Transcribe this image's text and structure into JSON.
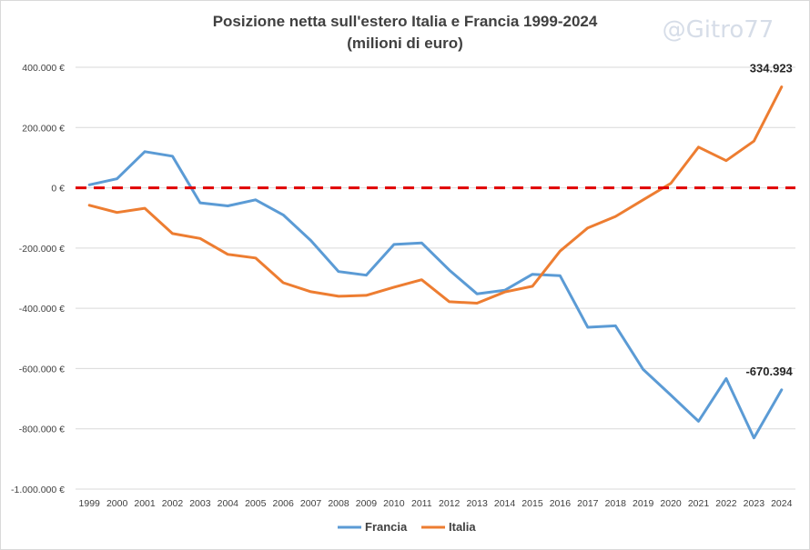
{
  "watermark": "@Gitro77",
  "chart_data": {
    "type": "line",
    "title_lines": [
      "Posizione netta sull'estero Italia e Francia 1999-2024",
      "(milioni di euro)"
    ],
    "xlabel": "",
    "ylabel": "",
    "x": [
      1999,
      2000,
      2001,
      2002,
      2003,
      2004,
      2005,
      2006,
      2007,
      2008,
      2009,
      2010,
      2011,
      2012,
      2013,
      2014,
      2015,
      2016,
      2017,
      2018,
      2019,
      2020,
      2021,
      2022,
      2023,
      2024
    ],
    "ylim": [
      -1000000,
      400000
    ],
    "y_ticks": [
      400000,
      200000,
      0,
      -200000,
      -400000,
      -600000,
      -800000,
      -1000000
    ],
    "y_tick_labels": [
      "400.000 €",
      "200.000 €",
      "0 €",
      "-200.000 €",
      "-400.000 €",
      "-600.000 €",
      "-800.000 €",
      "-1.000.000 €"
    ],
    "grid": "horizontal",
    "reference_line": {
      "y": 0,
      "color": "#e00000",
      "style": "dashed"
    },
    "legend_position": "bottom",
    "series": [
      {
        "name": "Francia",
        "color": "#5b9bd5",
        "values": [
          10000,
          30000,
          120000,
          105000,
          -50000,
          -60000,
          -40000,
          -90000,
          -175000,
          -278000,
          -290000,
          -188000,
          -183000,
          -273000,
          -352000,
          -340000,
          -287000,
          -292000,
          -463000,
          -458000,
          -603000,
          -688000,
          -775000,
          -633000,
          -830000,
          -670394
        ],
        "end_label": "-670.394"
      },
      {
        "name": "Italia",
        "color": "#ed7d31",
        "values": [
          -58000,
          -82000,
          -68000,
          -152000,
          -168000,
          -221000,
          -233000,
          -315000,
          -345000,
          -360000,
          -357000,
          -330000,
          -305000,
          -378000,
          -383000,
          -346000,
          -327000,
          -210000,
          -133000,
          -95000,
          -40000,
          15000,
          135000,
          90000,
          155000,
          334923
        ],
        "end_label": "334.923"
      }
    ]
  }
}
